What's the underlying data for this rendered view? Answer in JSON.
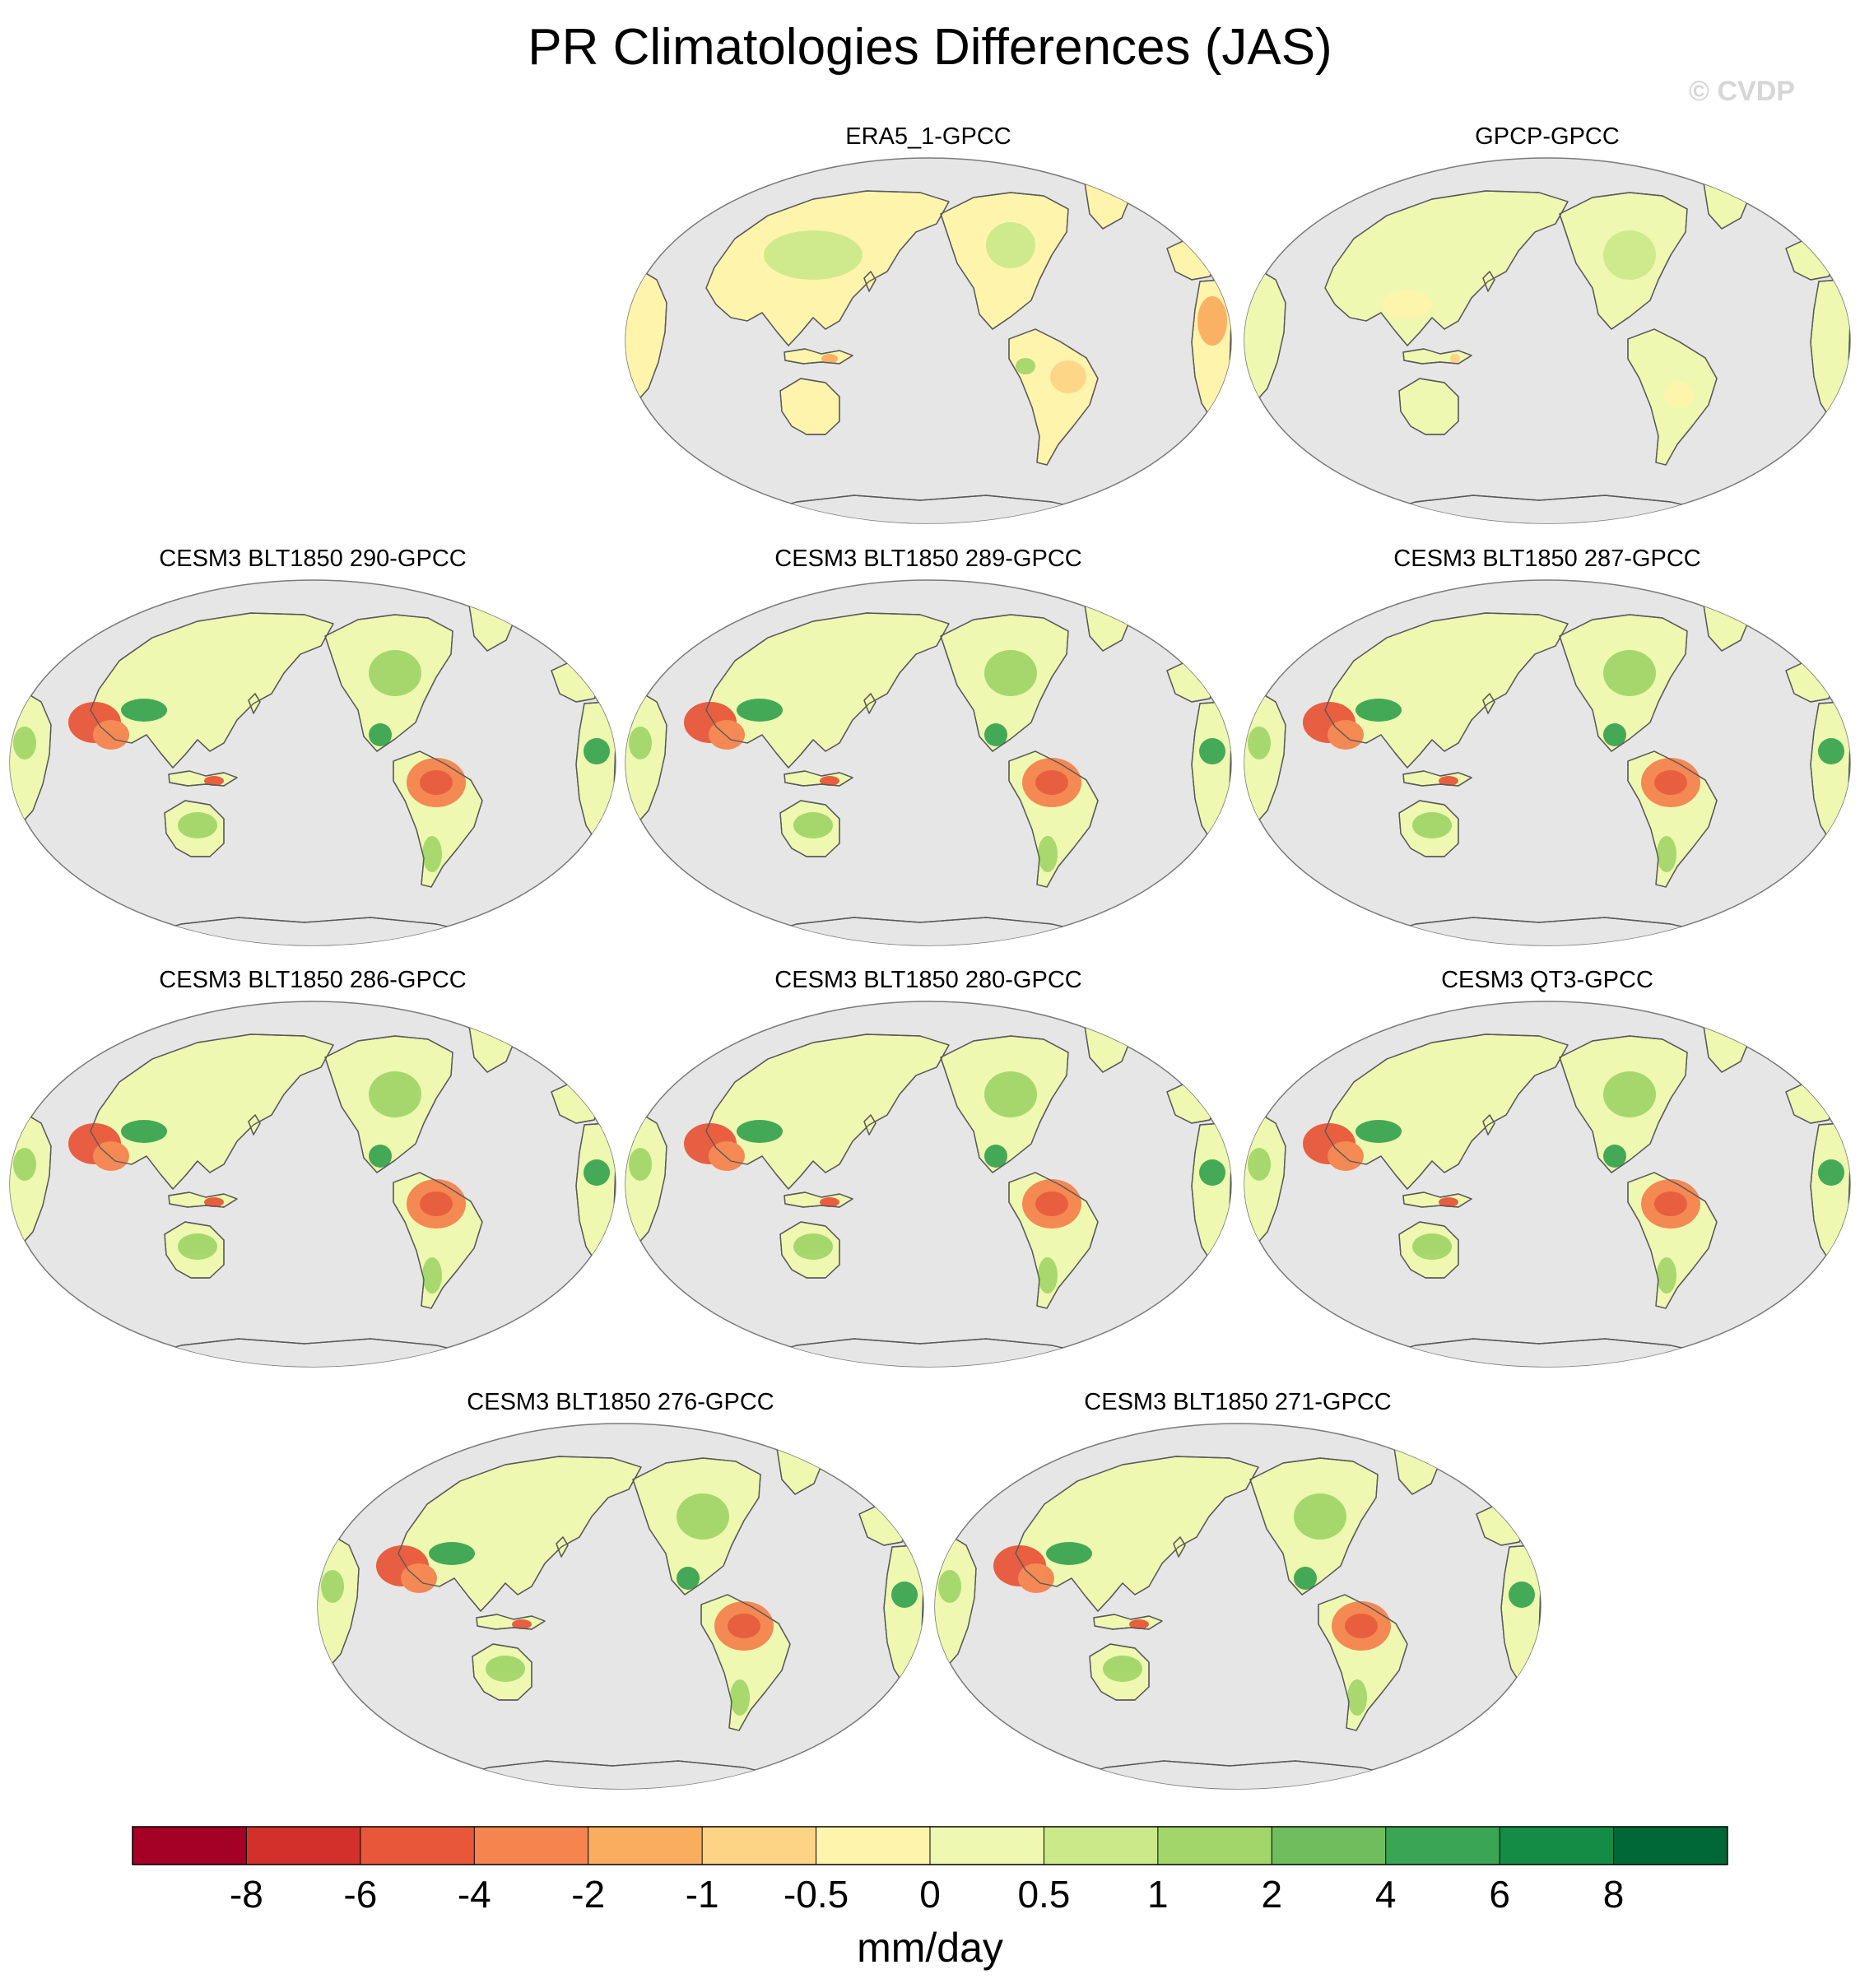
{
  "title": "PR Climatologies Differences (JAS)",
  "watermark": "© CVDP",
  "chart_data": {
    "type": "heatmap",
    "projection": "Robinson (Pacific-centered)",
    "season": "JAS",
    "panels": [
      {
        "title": "ERA5_1-GPCC",
        "style": "era"
      },
      {
        "title": "GPCP-GPCC",
        "style": "gpcp"
      },
      {
        "title": "CESM3 BLT1850 290-GPCC",
        "style": "model"
      },
      {
        "title": "CESM3 BLT1850 289-GPCC",
        "style": "model"
      },
      {
        "title": "CESM3 BLT1850 287-GPCC",
        "style": "model"
      },
      {
        "title": "CESM3 BLT1850 286-GPCC",
        "style": "model"
      },
      {
        "title": "CESM3 BLT1850 280-GPCC",
        "style": "model"
      },
      {
        "title": "CESM3 QT3-GPCC",
        "style": "model"
      },
      {
        "title": "CESM3 BLT1850 276-GPCC",
        "style": "model"
      },
      {
        "title": "CESM3 BLT1850 271-GPCC",
        "style": "model"
      }
    ],
    "colorbar": {
      "label": "mm/day",
      "levels": [
        "-8",
        "-6",
        "-4",
        "-2",
        "-1",
        "-0.5",
        "0",
        "0.5",
        "1",
        "2",
        "4",
        "6",
        "8"
      ],
      "colors": [
        "#a50026",
        "#d3302c",
        "#e8573a",
        "#f5844f",
        "#fbad5f",
        "#fdd485",
        "#fef4ac",
        "#eef8b0",
        "#cce98a",
        "#a3d66a",
        "#6fbd5c",
        "#3aa552",
        "#148c45",
        "#006837"
      ]
    },
    "ocean_color": "#e6e6e6",
    "coastline_color": "#5a5a5a"
  }
}
